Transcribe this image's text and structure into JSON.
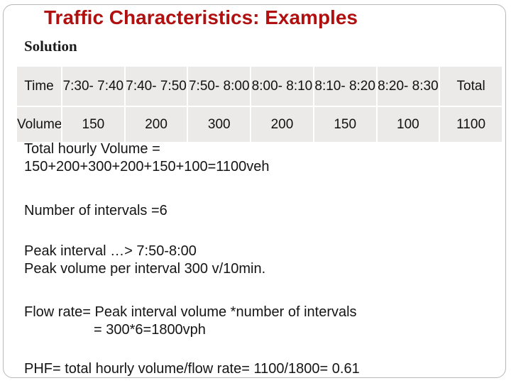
{
  "slide": {
    "title": "Traffic Characteristics: Examples",
    "subtitle": "Solution"
  },
  "table": {
    "header_label": "Time",
    "intervals": [
      "7:30- 7:40",
      "7:40- 7:50",
      "7:50- 8:00",
      "8:00- 8:10",
      "8:10- 8:20",
      "8:20- 8:30"
    ],
    "total_label": "Total",
    "row_label": "Volume",
    "volumes": [
      "150",
      "200",
      "300",
      "200",
      "150",
      "100"
    ],
    "total_value": "1100"
  },
  "body": {
    "total_line1": "Total hourly Volume =",
    "total_line2": "150+200+300+200+150+100=1100veh",
    "intervals_line": "Number of intervals =6",
    "peak_interval_line": "Peak interval …> 7:50-8:00",
    "peak_volume_line": "Peak volume  per interval 300 v/10min.",
    "flow_line1": "Flow rate= Peak interval volume *number of intervals",
    "flow_line2": "= 300*6=1800vph",
    "phf_line": "PHF= total hourly volume/flow rate= 1100/1800= 0.61"
  }
}
